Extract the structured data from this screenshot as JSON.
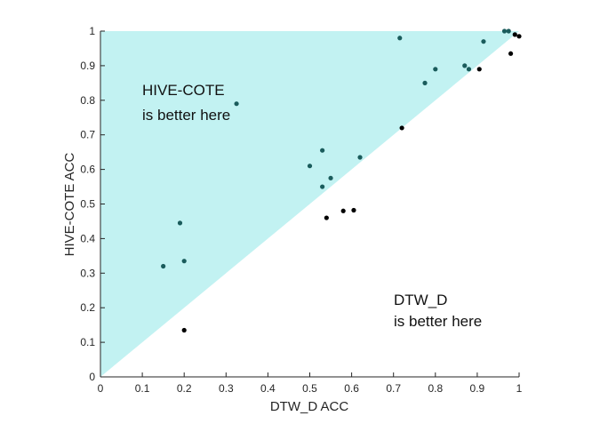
{
  "chart_data": {
    "type": "scatter",
    "xlabel": "DTW_D ACC",
    "ylabel": "HIVE-COTE ACC",
    "xlim": [
      0,
      1
    ],
    "ylim": [
      0,
      1
    ],
    "xticks": [
      "0",
      "0.1",
      "0.2",
      "0.3",
      "0.4",
      "0.5",
      "0.6",
      "0.7",
      "0.8",
      "0.9",
      "1"
    ],
    "yticks": [
      "0",
      "0.1",
      "0.2",
      "0.3",
      "0.4",
      "0.5",
      "0.6",
      "0.7",
      "0.8",
      "0.9",
      "1"
    ],
    "region_upper": {
      "lines": [
        "HIVE-COTE",
        "is better here"
      ],
      "color": "#c2f2f2"
    },
    "region_lower": {
      "lines": [
        "DTW_D",
        "is better here"
      ]
    },
    "point_color_upper": "#1a5c5c",
    "point_color_lower": "#000000",
    "points": [
      {
        "x": 0.15,
        "y": 0.32
      },
      {
        "x": 0.19,
        "y": 0.445
      },
      {
        "x": 0.2,
        "y": 0.335
      },
      {
        "x": 0.2,
        "y": 0.135
      },
      {
        "x": 0.325,
        "y": 0.79
      },
      {
        "x": 0.5,
        "y": 0.61
      },
      {
        "x": 0.53,
        "y": 0.655
      },
      {
        "x": 0.53,
        "y": 0.55
      },
      {
        "x": 0.54,
        "y": 0.46
      },
      {
        "x": 0.55,
        "y": 0.575
      },
      {
        "x": 0.58,
        "y": 0.48
      },
      {
        "x": 0.605,
        "y": 0.482
      },
      {
        "x": 0.62,
        "y": 0.635
      },
      {
        "x": 0.715,
        "y": 0.98
      },
      {
        "x": 0.72,
        "y": 0.72
      },
      {
        "x": 0.775,
        "y": 0.85
      },
      {
        "x": 0.8,
        "y": 0.89
      },
      {
        "x": 0.87,
        "y": 0.9
      },
      {
        "x": 0.88,
        "y": 0.89
      },
      {
        "x": 0.905,
        "y": 0.89
      },
      {
        "x": 0.915,
        "y": 0.97
      },
      {
        "x": 0.965,
        "y": 1.0
      },
      {
        "x": 0.975,
        "y": 1.0
      },
      {
        "x": 0.98,
        "y": 0.935
      },
      {
        "x": 0.99,
        "y": 0.99
      },
      {
        "x": 1.0,
        "y": 0.985
      }
    ]
  }
}
